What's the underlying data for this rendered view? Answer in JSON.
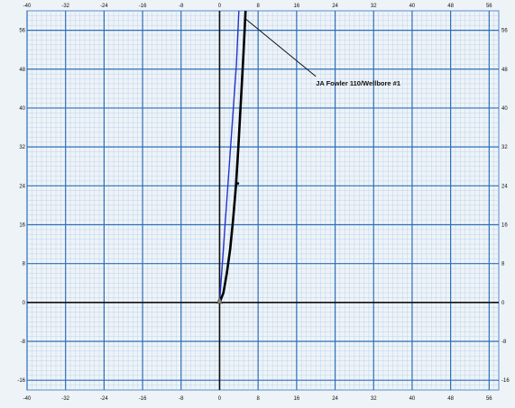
{
  "chart_data": {
    "type": "line",
    "title": "",
    "xlabel": "",
    "ylabel": "",
    "xlim": [
      -40,
      58
    ],
    "ylim": [
      -18,
      60
    ],
    "x_ticks": [
      -40,
      -32,
      -24,
      -16,
      -8,
      0,
      8,
      16,
      24,
      32,
      40,
      48,
      56
    ],
    "y_ticks": [
      56,
      48,
      40,
      32,
      24,
      16,
      8,
      0,
      -8,
      -16
    ],
    "grid": true,
    "colors": {
      "background": "#eef3f8",
      "minor_grid": "#a9c8e4",
      "major_grid": "#2a6fb8",
      "axis": "#111111",
      "blue_series": "#2233cc",
      "black_series": "#000000"
    },
    "series": [
      {
        "color": "#2233cc",
        "x": [
          0.0,
          0.5,
          1.0,
          1.5,
          2.0,
          2.5,
          3.0,
          3.5,
          4.0
        ],
        "y": [
          0.0,
          7.0,
          14.0,
          21.0,
          28.0,
          35.0,
          42.0,
          49.0,
          60.0
        ]
      },
      {
        "color": "#000000",
        "x": [
          0.0,
          0.8,
          1.5,
          2.2,
          2.8,
          3.4,
          3.9,
          4.4,
          4.9,
          5.4
        ],
        "y": [
          0.0,
          2.0,
          6.0,
          11.0,
          17.0,
          24.0,
          32.0,
          41.0,
          50.0,
          60.0
        ]
      }
    ],
    "annotations": [
      {
        "text": "JA Fowler 110/Wellbore #1",
        "x": 20.0,
        "y": 45.0
      }
    ]
  }
}
